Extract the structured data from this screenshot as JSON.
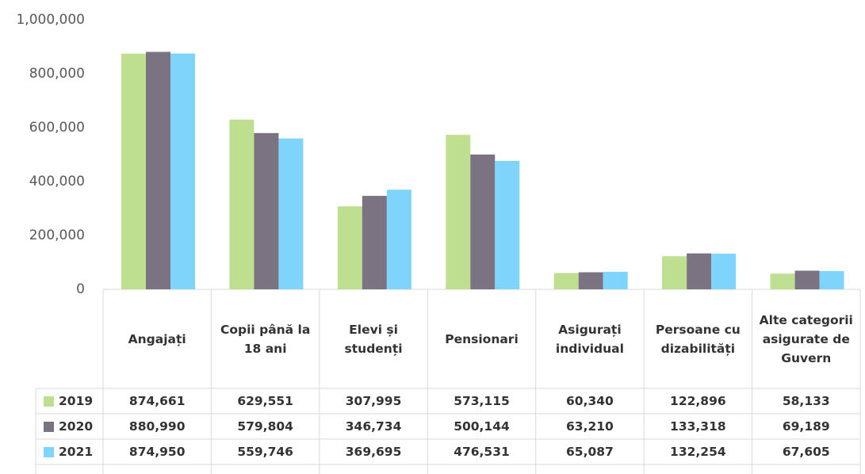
{
  "chart_data": {
    "type": "bar",
    "categories": [
      "Angajați",
      "Copii până la 18 ani",
      "Elevi și studenți",
      "Pensionari",
      "Asigurați individual",
      "Persoane cu dizabilități",
      "Alte categorii asigurate de Guvern"
    ],
    "series": [
      {
        "name": "2019",
        "color": "#bddf8f",
        "values": [
          874661,
          629551,
          307995,
          573115,
          60340,
          122896,
          58133
        ],
        "value_labels": [
          "874,661",
          "629,551",
          "307,995",
          "573,115",
          "60,340",
          "122,896",
          "58,133"
        ]
      },
      {
        "name": "2020",
        "color": "#7b7282",
        "values": [
          880990,
          579804,
          346734,
          500144,
          63210,
          133318,
          69189
        ],
        "value_labels": [
          "880,990",
          "579,804",
          "346,734",
          "500,144",
          "63,210",
          "133,318",
          "69,189"
        ]
      },
      {
        "name": "2021",
        "color": "#7fd4fb",
        "values": [
          874950,
          559746,
          369695,
          476531,
          65087,
          132254,
          67605
        ],
        "value_labels": [
          "874,950",
          "559,746",
          "369,695",
          "476,531",
          "65,087",
          "132,254",
          "67,605"
        ]
      }
    ],
    "ylim": [
      0,
      1000000
    ],
    "yticks": [
      0,
      {
        "value": 200000,
        "label": "200,000"
      },
      {
        "value": 400000,
        "label": "400,000"
      },
      {
        "value": 600000,
        "label": "600,000"
      },
      {
        "value": 800000,
        "label": "800,000"
      },
      {
        "value": 1000000,
        "label": "1,000,000"
      }
    ],
    "grid": false
  }
}
